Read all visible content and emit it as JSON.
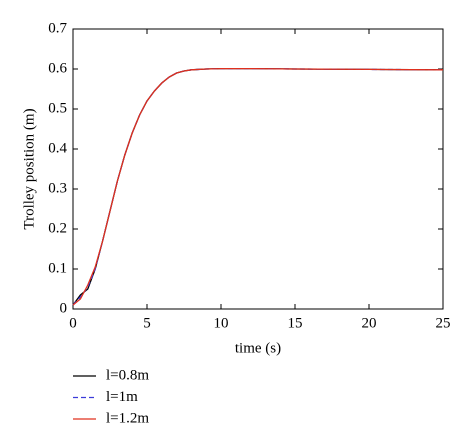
{
  "chart_data": {
    "type": "line",
    "xlabel": "time (s)",
    "ylabel": "Trolley position (m)",
    "x": [
      0,
      0.5,
      1,
      1.5,
      2,
      2.5,
      3,
      3.5,
      4,
      4.5,
      5,
      5.5,
      6,
      6.5,
      7,
      7.5,
      8,
      9,
      10,
      12,
      15,
      20,
      25
    ],
    "series": [
      {
        "name": "l=0.8m",
        "color": "#000000",
        "linestyle": "solid",
        "values": [
          0.01,
          0.035,
          0.05,
          0.1,
          0.17,
          0.245,
          0.32,
          0.385,
          0.44,
          0.485,
          0.52,
          0.545,
          0.565,
          0.58,
          0.59,
          0.595,
          0.598,
          0.6,
          0.601,
          0.601,
          0.6,
          0.599,
          0.598
        ]
      },
      {
        "name": "l=1m",
        "color": "#3b3bd9",
        "linestyle": "dashed",
        "values": [
          0.01,
          0.03,
          0.055,
          0.1,
          0.17,
          0.245,
          0.32,
          0.385,
          0.44,
          0.485,
          0.52,
          0.545,
          0.565,
          0.58,
          0.59,
          0.595,
          0.598,
          0.6,
          0.601,
          0.601,
          0.6,
          0.599,
          0.598
        ]
      },
      {
        "name": "l=1.2m",
        "color": "#e0301e",
        "linestyle": "solid",
        "values": [
          0.01,
          0.025,
          0.06,
          0.105,
          0.17,
          0.245,
          0.32,
          0.385,
          0.44,
          0.485,
          0.52,
          0.545,
          0.565,
          0.58,
          0.59,
          0.595,
          0.598,
          0.6,
          0.601,
          0.601,
          0.6,
          0.599,
          0.598
        ]
      }
    ],
    "xlim": [
      0,
      25
    ],
    "xticks": [
      0,
      5,
      10,
      15,
      20,
      25
    ],
    "ylim": [
      0,
      0.7
    ],
    "yticks": [
      0,
      0.1,
      0.2,
      0.3,
      0.4,
      0.5,
      0.6,
      0.7
    ],
    "legend": "below"
  }
}
